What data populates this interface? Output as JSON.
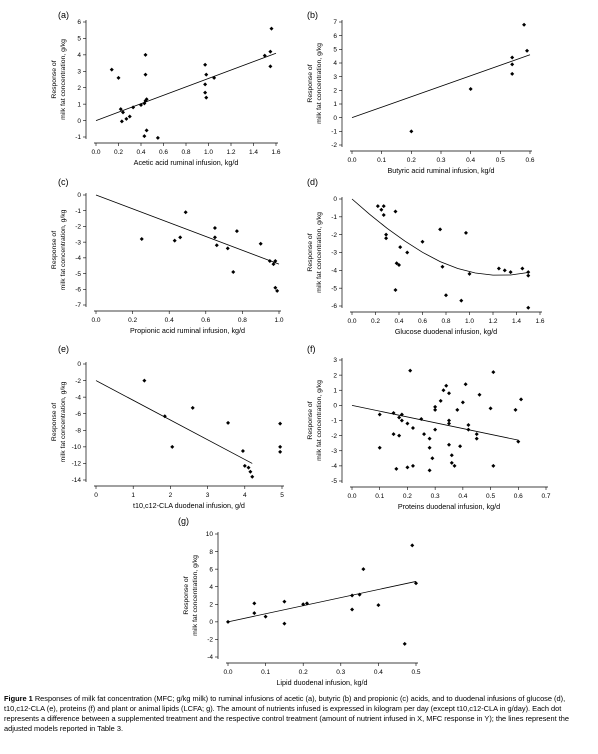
{
  "chart_data": [
    {
      "type": "scatter",
      "panel": "(a)",
      "xlabel": "Acetic acid ruminal infusion, kg/d",
      "ylabel": [
        "Response of",
        "milk fat concentration, g/kg"
      ],
      "xlim": [
        0,
        1.6
      ],
      "ylim": [
        -1,
        6
      ],
      "xticks": [
        "0.0",
        "0.2",
        "0.4",
        "0.6",
        "0.8",
        "1.0",
        "1.2",
        "1.4",
        "1.6"
      ],
      "yticks": [
        "-1",
        "0",
        "1",
        "2",
        "3",
        "4",
        "5",
        "6"
      ],
      "points": [
        [
          0.14,
          3.1
        ],
        [
          0.2,
          2.6
        ],
        [
          0.22,
          0.7
        ],
        [
          0.24,
          0.5
        ],
        [
          0.23,
          -0.05
        ],
        [
          0.27,
          0.1
        ],
        [
          0.3,
          0.25
        ],
        [
          0.33,
          0.8
        ],
        [
          0.4,
          0.95
        ],
        [
          0.44,
          1.2
        ],
        [
          0.43,
          1.05
        ],
        [
          0.45,
          1.3
        ],
        [
          0.44,
          2.8
        ],
        [
          0.44,
          4.0
        ],
        [
          0.45,
          -0.6
        ],
        [
          0.43,
          -0.95
        ],
        [
          0.55,
          -1.05
        ],
        [
          0.97,
          3.4
        ],
        [
          0.98,
          2.8
        ],
        [
          0.97,
          2.2
        ],
        [
          0.97,
          1.7
        ],
        [
          0.98,
          1.4
        ],
        [
          1.05,
          2.6
        ],
        [
          1.5,
          3.95
        ],
        [
          1.55,
          4.2
        ],
        [
          1.55,
          3.3
        ],
        [
          1.56,
          5.6
        ]
      ],
      "fit": [
        [
          0,
          0
        ],
        [
          1.6,
          4.1
        ]
      ],
      "grid": false
    },
    {
      "type": "scatter",
      "panel": "(b)",
      "xlabel": "Butyric acid ruminal infusion, kg/d",
      "ylabel": [
        "Response of",
        "milk fat concentration, g/kg"
      ],
      "xlim": [
        0,
        0.6
      ],
      "ylim": [
        -2,
        7
      ],
      "xticks": [
        "0.0",
        "0.1",
        "0.2",
        "0.3",
        "0.4",
        "0.5",
        "0.6"
      ],
      "yticks": [
        "-2",
        "-1",
        "0",
        "1",
        "2",
        "3",
        "4",
        "5",
        "6",
        "7"
      ],
      "points": [
        [
          0.2,
          -1.0
        ],
        [
          0.4,
          2.1
        ],
        [
          0.54,
          3.2
        ],
        [
          0.54,
          3.9
        ],
        [
          0.54,
          4.4
        ],
        [
          0.59,
          4.9
        ],
        [
          0.58,
          6.8
        ]
      ],
      "fit": [
        [
          0,
          0
        ],
        [
          0.6,
          4.6
        ]
      ],
      "grid": false
    },
    {
      "type": "scatter",
      "panel": "(c)",
      "xlabel": "Propionic acid ruminal infusion, kg/d",
      "ylabel": [
        "Response of",
        "milk fat concentration, g/kg"
      ],
      "xlim": [
        0,
        1.0
      ],
      "ylim": [
        -7,
        0
      ],
      "xticks": [
        "0.0",
        "0.2",
        "0.4",
        "0.6",
        "0.8",
        "1.0"
      ],
      "yticks": [
        "0",
        "-1",
        "-2",
        "-3",
        "-4",
        "-5",
        "-6",
        "-7"
      ],
      "points": [
        [
          0.25,
          -2.8
        ],
        [
          0.43,
          -2.9
        ],
        [
          0.46,
          -2.7
        ],
        [
          0.49,
          -1.1
        ],
        [
          0.65,
          -2.1
        ],
        [
          0.65,
          -2.7
        ],
        [
          0.66,
          -3.2
        ],
        [
          0.72,
          -3.4
        ],
        [
          0.75,
          -4.9
        ],
        [
          0.77,
          -2.3
        ],
        [
          0.9,
          -3.1
        ],
        [
          0.95,
          -4.2
        ],
        [
          0.97,
          -4.4
        ],
        [
          0.98,
          -4.2
        ],
        [
          0.99,
          -6.1
        ],
        [
          0.98,
          -5.9
        ]
      ],
      "fit": [
        [
          0,
          0
        ],
        [
          1.0,
          -4.4
        ]
      ],
      "grid": false
    },
    {
      "type": "scatter",
      "panel": "(d)",
      "xlabel": "Glucose duodenal infusion, kg/d",
      "ylabel": [
        "Response of",
        "milk fat concentration, g/kg"
      ],
      "xlim": [
        0,
        1.6
      ],
      "ylim": [
        -6,
        0
      ],
      "xticks": [
        "0.0",
        "0.2",
        "0.4",
        "0.6",
        "0.8",
        "1.0",
        "1.2",
        "1.4",
        "1.6"
      ],
      "yticks": [
        "0",
        "-1",
        "-2",
        "-3",
        "-4",
        "-5",
        "-6"
      ],
      "points": [
        [
          0.22,
          -0.4
        ],
        [
          0.25,
          -0.6
        ],
        [
          0.27,
          -0.4
        ],
        [
          0.27,
          -0.9
        ],
        [
          0.29,
          -2.0
        ],
        [
          0.29,
          -2.2
        ],
        [
          0.37,
          -0.7
        ],
        [
          0.38,
          -3.6
        ],
        [
          0.4,
          -3.7
        ],
        [
          0.41,
          -2.7
        ],
        [
          0.47,
          -3.0
        ],
        [
          0.37,
          -5.1
        ],
        [
          0.6,
          -2.4
        ],
        [
          0.75,
          -1.7
        ],
        [
          0.8,
          -5.4
        ],
        [
          0.77,
          -3.8
        ],
        [
          0.93,
          -5.7
        ],
        [
          0.97,
          -1.9
        ],
        [
          1.0,
          -4.2
        ],
        [
          1.25,
          -3.9
        ],
        [
          1.3,
          -4.0
        ],
        [
          1.35,
          -4.1
        ],
        [
          1.45,
          -3.9
        ],
        [
          1.5,
          -4.1
        ],
        [
          1.5,
          -4.3
        ],
        [
          1.5,
          -6.1
        ]
      ],
      "fit_curve": [
        [
          0.0,
          0.0
        ],
        [
          0.15,
          -0.86
        ],
        [
          0.3,
          -1.65
        ],
        [
          0.45,
          -2.36
        ],
        [
          0.6,
          -2.99
        ],
        [
          0.75,
          -3.51
        ],
        [
          0.9,
          -3.9
        ],
        [
          1.05,
          -4.15
        ],
        [
          1.2,
          -4.27
        ],
        [
          1.35,
          -4.26
        ],
        [
          1.5,
          -4.12
        ]
      ],
      "grid": false
    },
    {
      "type": "scatter",
      "panel": "(e)",
      "xlabel": "t10,c12-CLA duodenal infusion, g/d",
      "ylabel": [
        "Response of",
        "milk fat concentration, g/kg"
      ],
      "xlim": [
        0,
        5
      ],
      "ylim": [
        -14,
        0
      ],
      "xticks": [
        "0",
        "1",
        "2",
        "3",
        "4",
        "5"
      ],
      "yticks": [
        "0",
        "-2",
        "-4",
        "-6",
        "-8",
        "-10",
        "-12",
        "-14"
      ],
      "points": [
        [
          1.3,
          -2.0
        ],
        [
          1.85,
          -6.3
        ],
        [
          2.05,
          -10.0
        ],
        [
          2.6,
          -5.3
        ],
        [
          3.55,
          -7.1
        ],
        [
          3.95,
          -10.5
        ],
        [
          4.0,
          -12.3
        ],
        [
          4.1,
          -12.5
        ],
        [
          4.15,
          -13.0
        ],
        [
          4.2,
          -13.6
        ],
        [
          4.95,
          -7.2
        ],
        [
          4.95,
          -10.0
        ],
        [
          4.95,
          -10.6
        ]
      ],
      "fit": [
        [
          0,
          -2.0
        ],
        [
          4.2,
          -12.0
        ]
      ],
      "grid": false
    },
    {
      "type": "scatter",
      "panel": "(f)",
      "xlabel": "Proteins duodenal infusion, kg/d",
      "ylabel": [
        "Response of",
        "milk fat concentration, g/kg"
      ],
      "xlim": [
        0,
        0.7
      ],
      "ylim": [
        -5,
        3
      ],
      "xticks": [
        "0.0",
        "0.1",
        "0.2",
        "0.3",
        "0.4",
        "0.5",
        "0.6",
        "0.7"
      ],
      "yticks": [
        "-5",
        "-4",
        "-3",
        "-2",
        "-1",
        "0",
        "1",
        "2",
        "3"
      ],
      "points": [
        [
          0.1,
          -0.6
        ],
        [
          0.1,
          -2.8
        ],
        [
          0.15,
          -0.5
        ],
        [
          0.15,
          -1.9
        ],
        [
          0.16,
          -4.2
        ],
        [
          0.17,
          -0.8
        ],
        [
          0.17,
          -2.0
        ],
        [
          0.18,
          -1.0
        ],
        [
          0.18,
          -0.6
        ],
        [
          0.2,
          -4.1
        ],
        [
          0.2,
          -1.2
        ],
        [
          0.21,
          2.3
        ],
        [
          0.22,
          -1.5
        ],
        [
          0.22,
          -4.0
        ],
        [
          0.25,
          -0.9
        ],
        [
          0.26,
          -1.9
        ],
        [
          0.28,
          -2.2
        ],
        [
          0.28,
          -2.8
        ],
        [
          0.28,
          -4.3
        ],
        [
          0.29,
          -3.5
        ],
        [
          0.3,
          -1.6
        ],
        [
          0.3,
          -0.3
        ],
        [
          0.3,
          -0.1
        ],
        [
          0.32,
          0.3
        ],
        [
          0.33,
          1.0
        ],
        [
          0.34,
          1.3
        ],
        [
          0.35,
          0.8
        ],
        [
          0.35,
          -1.0
        ],
        [
          0.35,
          -1.2
        ],
        [
          0.35,
          -2.6
        ],
        [
          0.36,
          -3.3
        ],
        [
          0.36,
          -3.8
        ],
        [
          0.37,
          -4.0
        ],
        [
          0.38,
          -0.3
        ],
        [
          0.39,
          -2.7
        ],
        [
          0.4,
          0.2
        ],
        [
          0.41,
          1.4
        ],
        [
          0.42,
          -1.3
        ],
        [
          0.42,
          -1.6
        ],
        [
          0.45,
          -1.9
        ],
        [
          0.45,
          -2.2
        ],
        [
          0.46,
          0.7
        ],
        [
          0.5,
          -0.2
        ],
        [
          0.51,
          2.2
        ],
        [
          0.51,
          -4.0
        ],
        [
          0.59,
          -0.3
        ],
        [
          0.61,
          0.4
        ],
        [
          0.6,
          -2.4
        ]
      ],
      "fit": [
        [
          0,
          0
        ],
        [
          0.6,
          -2.3
        ]
      ],
      "grid": false
    },
    {
      "type": "scatter",
      "panel": "(g)",
      "xlabel": "Lipid duodenal infusion, kg/d",
      "ylabel": [
        "Response of",
        "milk fat concentration, g/kg"
      ],
      "xlim": [
        0,
        0.5
      ],
      "ylim": [
        -4,
        10
      ],
      "xticks": [
        "0.0",
        "0.1",
        "0.2",
        "0.3",
        "0.4",
        "0.5"
      ],
      "yticks": [
        "-4",
        "-2",
        "0",
        "2",
        "4",
        "6",
        "8",
        "10"
      ],
      "points": [
        [
          0.0,
          0.0
        ],
        [
          0.07,
          1.0
        ],
        [
          0.07,
          2.1
        ],
        [
          0.1,
          0.6
        ],
        [
          0.15,
          -0.2
        ],
        [
          0.15,
          2.3
        ],
        [
          0.2,
          2.0
        ],
        [
          0.21,
          2.1
        ],
        [
          0.33,
          1.4
        ],
        [
          0.33,
          3.0
        ],
        [
          0.35,
          3.1
        ],
        [
          0.36,
          6.0
        ],
        [
          0.4,
          1.9
        ],
        [
          0.47,
          -2.5
        ],
        [
          0.5,
          4.4
        ],
        [
          0.49,
          8.7
        ]
      ],
      "fit": [
        [
          0,
          0
        ],
        [
          0.5,
          4.6
        ]
      ],
      "grid": false
    }
  ],
  "caption": {
    "label": "Figure 1",
    "text": "Responses of milk fat concentration (MFC; g/kg milk) to ruminal infusions of acetic (a), butyric (b) and propionic (c) acids, and to duodenal infusions of glucose (d), t10,c12-CLA (e), proteins (f) and plant or animal lipids (LCFA; g). The amount of nutrients infused is expressed in kilogram per day (except t10,c12-CLA in g/day). Each dot represents a difference between a supplemented treatment and the respective control treatment (amount of nutrient infused in X, MFC response in Y); the lines represent the adjusted models reported in Table 3."
  }
}
